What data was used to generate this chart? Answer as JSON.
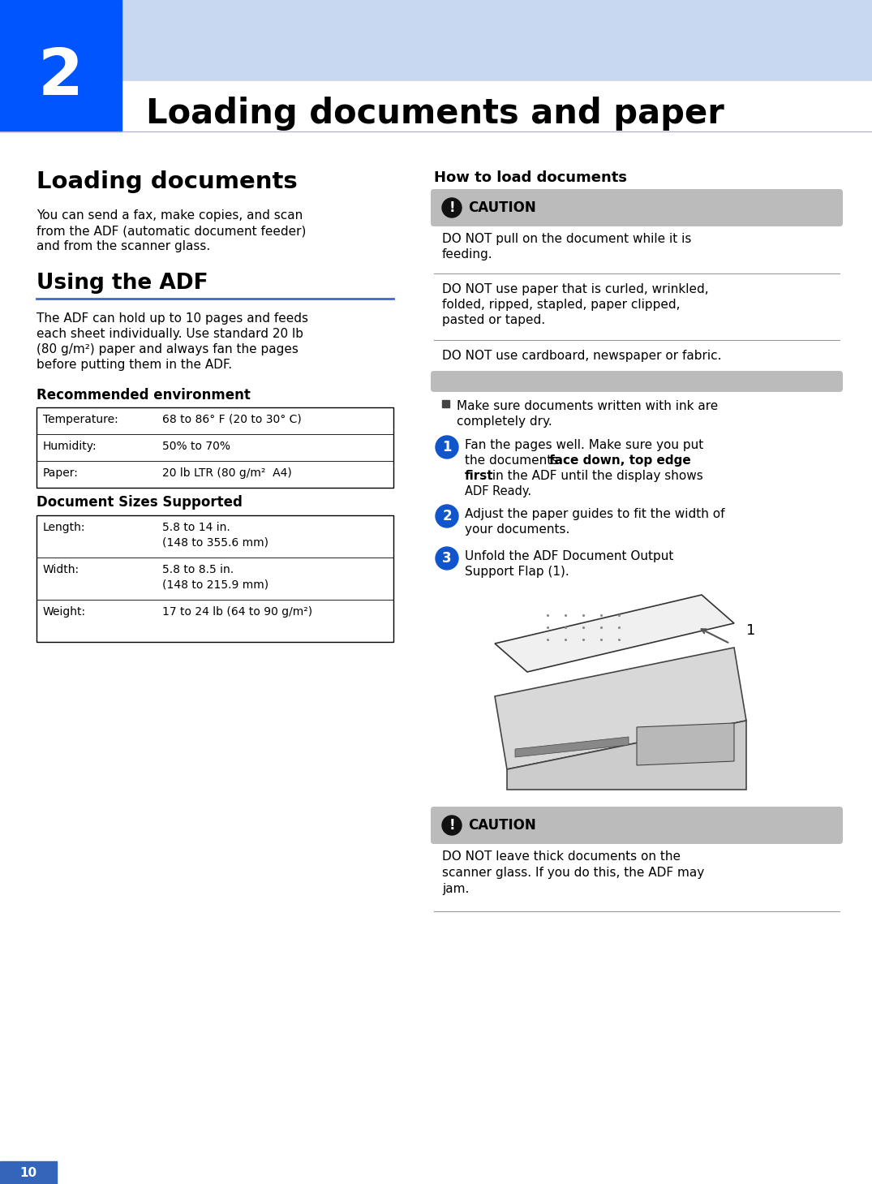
{
  "page_bg": "#ffffff",
  "header_light_color": "#c8d8f0",
  "header_blue_color": "#0055ff",
  "chapter_num": "2",
  "chapter_title": "Loading documents and paper",
  "section1_title": "Loading documents",
  "section1_body": "You can send a fax, make copies, and scan\nfrom the ADF (automatic document feeder)\nand from the scanner glass.",
  "section2_title": "Using the ADF",
  "section2_body_line1": "The ADF can hold up to 10 pages and feeds",
  "section2_body_line2": "each sheet individually. Use standard 20 lb",
  "section2_body_line3": "(80 g/m²) paper and always fan the pages",
  "section2_body_line4": "before putting them in the ADF.",
  "rec_env_title": "Recommended environment",
  "rec_env_rows": [
    [
      "Temperature:",
      "68 to 86° F (20 to 30° C)"
    ],
    [
      "Humidity:",
      "50% to 70%"
    ],
    [
      "Paper:",
      "20 lb LTR (80 g/m²  A4)"
    ]
  ],
  "doc_sizes_title": "Document Sizes Supported",
  "doc_sizes_rows": [
    [
      "Length:",
      "5.8 to 14 in.\n(148 to 355.6 mm)"
    ],
    [
      "Width:",
      "5.8 to 8.5 in.\n(148 to 215.9 mm)"
    ],
    [
      "Weight:",
      "17 to 24 lb (64 to 90 g/m²)"
    ]
  ],
  "right_title": "How to load documents",
  "caution_bg": "#bbbbbb",
  "caution_icon_bg": "#111111",
  "caution1_text": "DO NOT pull on the document while it is\nfeeding.",
  "caution2_text": "DO NOT use paper that is curled, wrinkled,\nfolded, ripped, stapled, paper clipped,\npasted or taped.",
  "caution3_text": "DO NOT use cardboard, newspaper or fabric.",
  "bullet_text": "Make sure documents written with ink are\ncompletely dry.",
  "step1_pre": "Fan the pages well. Make sure you put\nthe documents ",
  "step1_bold": "face down, top edge\nfirst",
  "step1_post": " in the ADF until the display shows\nADF Ready.",
  "step2_text": "Adjust the paper guides to fit the width of\nyour documents.",
  "step3_text": "Unfold the ADF Document Output\nSupport Flap (1).",
  "caution_bottom_text": "DO NOT leave thick documents on the\nscanner glass. If you do this, the ADF may\njam.",
  "footer_num": "10",
  "footer_color": "#3366bb",
  "blue_line_color": "#4466cc",
  "step_circle_color": "#1155cc",
  "divider_color": "#999999"
}
